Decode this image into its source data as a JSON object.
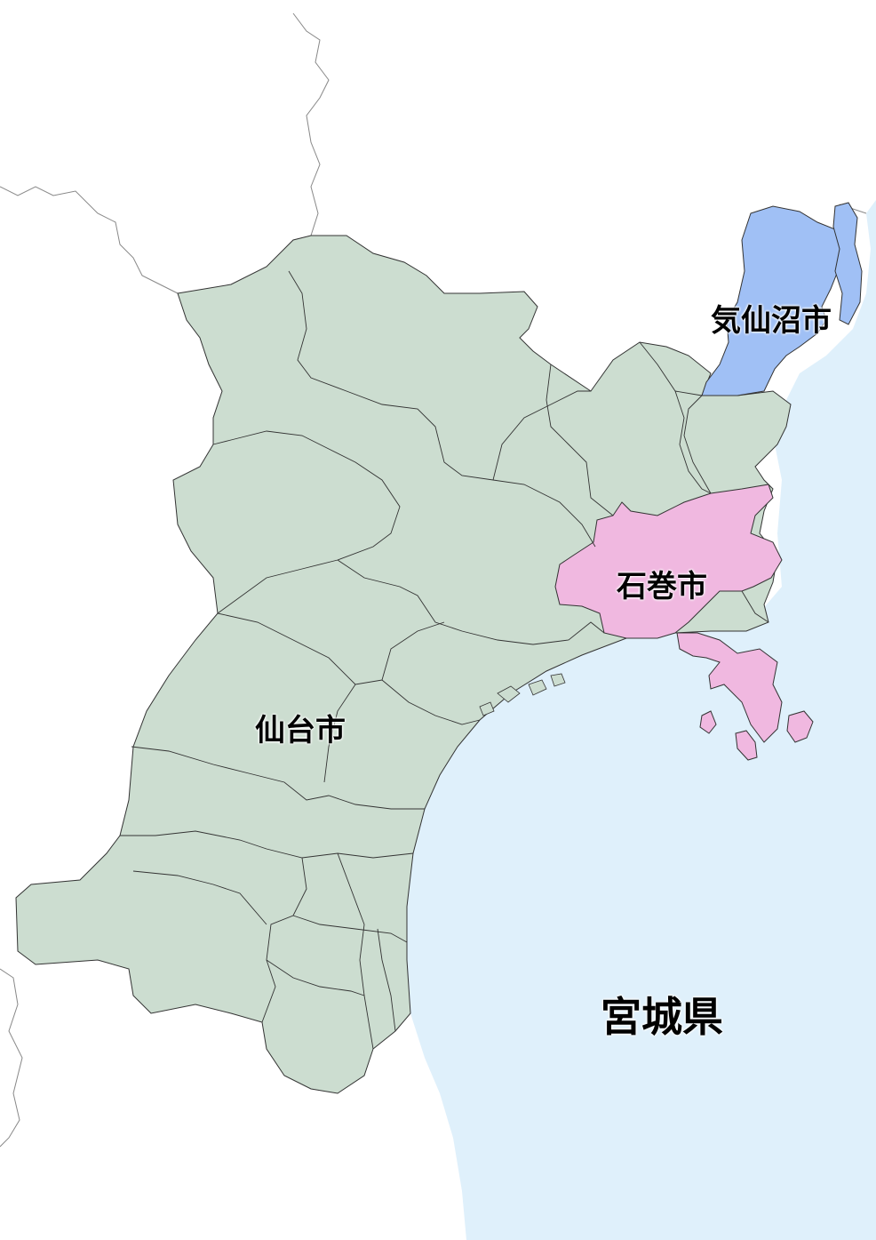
{
  "map": {
    "labels": {
      "kesennuma": "気仙沼市",
      "ishinomaki": "石巻市",
      "sendai": "仙台市",
      "prefecture": "宮城県"
    },
    "colors": {
      "sea": "#dff0fb",
      "land_other": "#ffffff",
      "prefecture_land": "#ccddd0",
      "kesennuma": "#a0c0f5",
      "ishinomaki": "#f0b8e0",
      "border": "#333333",
      "outside_border": "#888888"
    }
  }
}
